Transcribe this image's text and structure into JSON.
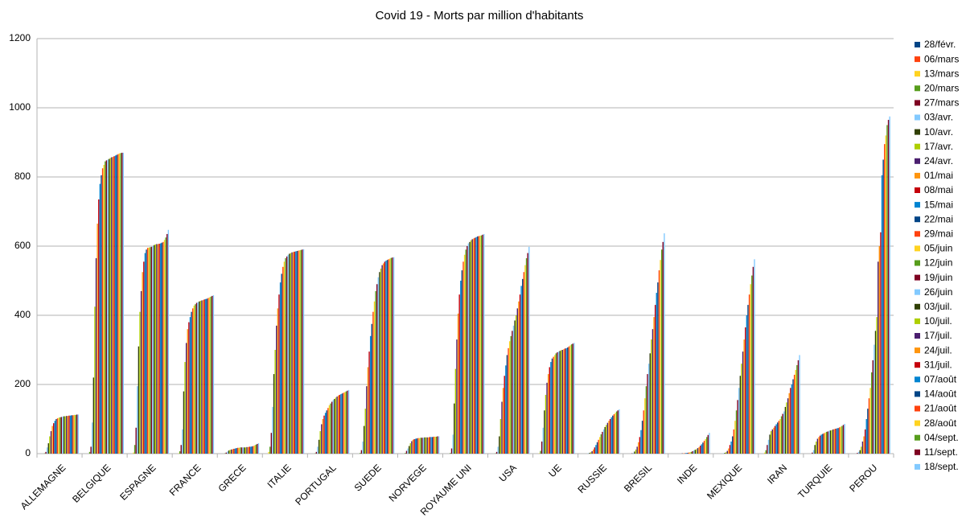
{
  "chart_data": {
    "type": "bar",
    "title": "Covid 19 - Morts par million d'habitants",
    "categories": [
      "ALLEMAGNE",
      "BELGIQUE",
      "ESPAGNE",
      "FRANCE",
      "GRECE",
      "ITALIE",
      "PORTUGAL",
      "SUEDE",
      "NORVEGE",
      "ROYAUME UNI",
      "USA",
      "UE",
      "RUSSIE",
      "BRESIL",
      "INDE",
      "MEXIQUE",
      "IRAN",
      "TURQUIE",
      "PEROU"
    ],
    "ylim": [
      0,
      1200
    ],
    "yticks": [
      0,
      200,
      400,
      600,
      800,
      1000,
      1200
    ],
    "grid": true,
    "legend": "right",
    "series": [
      {
        "name": "28/févr.",
        "color": "#004586",
        "values": [
          0,
          0,
          0,
          0,
          0,
          0,
          0,
          0,
          0,
          0,
          0,
          0,
          0,
          0,
          0,
          0,
          0,
          0,
          0
        ]
      },
      {
        "name": "06/mars",
        "color": "#ff420e",
        "values": [
          0,
          0,
          0,
          0,
          0,
          0,
          0,
          0,
          0,
          0,
          0,
          0,
          0,
          0,
          0,
          0,
          0,
          0,
          0
        ]
      },
      {
        "name": "13/mars",
        "color": "#ffd320",
        "values": [
          0,
          0,
          3,
          1,
          0,
          5,
          0,
          0,
          0,
          0,
          0,
          1,
          0,
          0,
          0,
          0,
          3,
          0,
          0
        ]
      },
      {
        "name": "20/mars",
        "color": "#579d1c",
        "values": [
          1,
          5,
          25,
          7,
          1,
          20,
          1,
          2,
          2,
          2,
          1,
          8,
          0,
          0,
          0,
          0,
          10,
          0,
          0
        ]
      },
      {
        "name": "27/mars",
        "color": "#7e0021",
        "values": [
          5,
          20,
          75,
          25,
          3,
          60,
          5,
          10,
          8,
          15,
          5,
          35,
          0,
          1,
          0,
          0,
          25,
          3,
          2
        ]
      },
      {
        "name": "03/avr.",
        "color": "#83caff",
        "values": [
          18,
          90,
          195,
          70,
          6,
          135,
          20,
          35,
          15,
          55,
          20,
          75,
          1,
          2,
          0,
          1,
          40,
          10,
          5
        ]
      },
      {
        "name": "10/avr.",
        "color": "#314004",
        "values": [
          30,
          220,
          310,
          180,
          9,
          230,
          40,
          80,
          22,
          145,
          50,
          125,
          2,
          6,
          0,
          2,
          55,
          25,
          10
        ]
      },
      {
        "name": "17/avr.",
        "color": "#aecf00",
        "values": [
          50,
          425,
          410,
          265,
          11,
          300,
          65,
          130,
          30,
          245,
          100,
          170,
          4,
          12,
          0,
          4,
          65,
          35,
          20
        ]
      },
      {
        "name": "24/avr.",
        "color": "#4b1f6f",
        "values": [
          65,
          565,
          470,
          320,
          12,
          370,
          85,
          195,
          36,
          330,
          150,
          205,
          7,
          20,
          1,
          8,
          70,
          43,
          35
        ]
      },
      {
        "name": "01/mai",
        "color": "#ff950e",
        "values": [
          80,
          665,
          525,
          360,
          13,
          420,
          100,
          250,
          40,
          405,
          190,
          230,
          12,
          33,
          1,
          15,
          75,
          48,
          50
        ]
      },
      {
        "name": "08/mai",
        "color": "#c5000b",
        "values": [
          88,
          735,
          555,
          380,
          14,
          460,
          110,
          295,
          42,
          460,
          225,
          250,
          18,
          48,
          1,
          25,
          80,
          52,
          70
        ]
      },
      {
        "name": "15/mai",
        "color": "#0084d1",
        "values": [
          95,
          780,
          580,
          395,
          15,
          495,
          118,
          340,
          43,
          500,
          255,
          265,
          25,
          68,
          2,
          35,
          85,
          55,
          100
        ]
      },
      {
        "name": "22/mai",
        "color": "#004586",
        "values": [
          100,
          805,
          590,
          410,
          16,
          520,
          125,
          375,
          44,
          530,
          285,
          275,
          33,
          95,
          2,
          50,
          90,
          57,
          130
        ]
      },
      {
        "name": "29/mai",
        "color": "#ff420e",
        "values": [
          102,
          825,
          595,
          420,
          17,
          540,
          132,
          410,
          45,
          555,
          305,
          280,
          40,
          125,
          3,
          70,
          95,
          59,
          160
        ]
      },
      {
        "name": "05/juin",
        "color": "#ffd320",
        "values": [
          104,
          835,
          596,
          428,
          17,
          555,
          140,
          440,
          45,
          575,
          325,
          285,
          48,
          160,
          4,
          95,
          100,
          61,
          190
        ]
      },
      {
        "name": "12/juin",
        "color": "#579d1c",
        "values": [
          105,
          845,
          597,
          432,
          18,
          565,
          145,
          470,
          46,
          590,
          340,
          290,
          56,
          195,
          5,
          125,
          108,
          63,
          235
        ]
      },
      {
        "name": "19/juin",
        "color": "#7e0021",
        "values": [
          106,
          848,
          598,
          436,
          18,
          570,
          150,
          490,
          46,
          600,
          355,
          293,
          63,
          230,
          7,
          155,
          115,
          64,
          270
        ]
      },
      {
        "name": "26/juin",
        "color": "#83caff",
        "values": [
          107,
          850,
          600,
          438,
          18,
          575,
          155,
          510,
          46,
          608,
          370,
          295,
          70,
          260,
          9,
          190,
          122,
          66,
          315
        ]
      },
      {
        "name": "03/juil.",
        "color": "#314004",
        "values": [
          108,
          852,
          603,
          440,
          18,
          578,
          158,
          525,
          47,
          612,
          385,
          297,
          77,
          290,
          11,
          225,
          135,
          67,
          355
        ]
      },
      {
        "name": "10/juil.",
        "color": "#aecf00",
        "values": [
          108,
          855,
          605,
          442,
          18,
          580,
          162,
          535,
          47,
          617,
          400,
          299,
          83,
          330,
          13,
          260,
          148,
          68,
          395
        ]
      },
      {
        "name": "17/juil.",
        "color": "#4b1f6f",
        "values": [
          109,
          857,
          606,
          443,
          19,
          582,
          165,
          545,
          47,
          620,
          420,
          300,
          89,
          360,
          16,
          295,
          160,
          70,
          555
        ]
      },
      {
        "name": "24/juil.",
        "color": "#ff950e",
        "values": [
          109,
          858,
          606,
          444,
          19,
          583,
          168,
          550,
          47,
          622,
          440,
          302,
          95,
          395,
          19,
          330,
          175,
          71,
          600
        ]
      },
      {
        "name": "31/juil.",
        "color": "#c5000b",
        "values": [
          110,
          860,
          607,
          446,
          20,
          584,
          170,
          555,
          48,
          624,
          460,
          304,
          100,
          430,
          23,
          365,
          190,
          72,
          640
        ]
      },
      {
        "name": "07/août",
        "color": "#0084d1",
        "values": [
          110,
          862,
          608,
          447,
          20,
          585,
          172,
          558,
          48,
          626,
          485,
          305,
          105,
          465,
          27,
          400,
          200,
          73,
          805
        ]
      },
      {
        "name": "14/août",
        "color": "#004586",
        "values": [
          111,
          864,
          610,
          448,
          21,
          586,
          174,
          560,
          48,
          628,
          505,
          307,
          110,
          495,
          32,
          430,
          215,
          74,
          850
        ]
      },
      {
        "name": "21/août",
        "color": "#ff420e",
        "values": [
          111,
          866,
          612,
          450,
          22,
          587,
          176,
          562,
          49,
          629,
          525,
          310,
          114,
          530,
          37,
          460,
          228,
          76,
          895
        ]
      },
      {
        "name": "28/août",
        "color": "#ffd320",
        "values": [
          112,
          868,
          618,
          452,
          24,
          588,
          178,
          564,
          49,
          630,
          545,
          313,
          118,
          560,
          42,
          490,
          242,
          78,
          920
        ]
      },
      {
        "name": "04/sept.",
        "color": "#579d1c",
        "values": [
          112,
          869,
          625,
          454,
          26,
          589,
          180,
          566,
          49,
          631,
          565,
          316,
          122,
          590,
          48,
          515,
          256,
          80,
          950
        ]
      },
      {
        "name": "11/sept.",
        "color": "#7e0021",
        "values": [
          113,
          870,
          635,
          456,
          28,
          590,
          182,
          567,
          50,
          633,
          580,
          318,
          125,
          612,
          54,
          540,
          270,
          83,
          965
        ]
      },
      {
        "name": "18/sept.",
        "color": "#83caff",
        "values": [
          113,
          870,
          647,
          458,
          30,
          591,
          184,
          568,
          50,
          635,
          598,
          320,
          128,
          637,
          60,
          562,
          285,
          86,
          975
        ]
      }
    ]
  }
}
